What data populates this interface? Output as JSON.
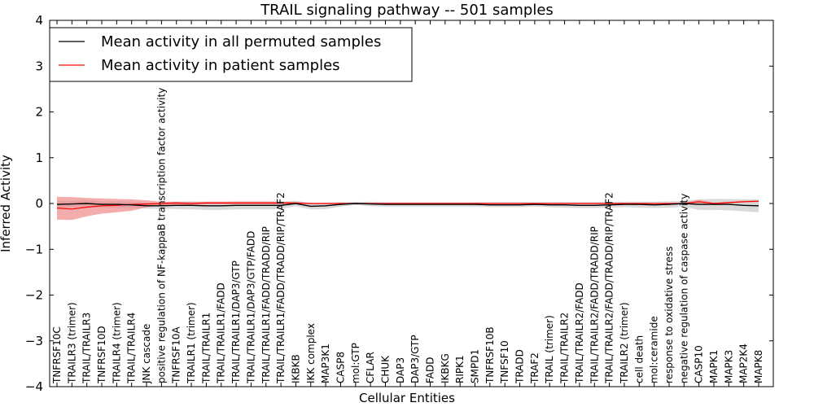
{
  "chart_data": {
    "type": "line",
    "title": "TRAIL signaling pathway -- 501 samples",
    "xlabel": "Cellular Entities",
    "ylabel": "Inferred Activity",
    "ylim": [
      -4,
      4
    ],
    "yticks": [
      "4",
      "3",
      "2",
      "1",
      "0",
      "−1",
      "−2",
      "−3",
      "−4"
    ],
    "ytick_values": [
      4,
      3,
      2,
      1,
      0,
      -1,
      -2,
      -3,
      -4
    ],
    "grid": false,
    "legend_location": "top-left",
    "colors": {
      "permuted": "#000000",
      "patient": "#ff0000",
      "permuted_band": "#bfbfbf",
      "patient_band": "#f08080"
    },
    "categories": [
      "TNFRSF10C",
      "TRAILR3 (trimer)",
      "TRAIL/TRAILR3",
      "TNFRSF10D",
      "TRAILR4 (trimer)",
      "TRAIL/TRAILR4",
      "JNK cascade",
      "positive regulation of NF-kappaB transcription factor activity",
      "TNFRSF10A",
      "TRAILR1 (trimer)",
      "TRAIL/TRAILR1",
      "TRAIL/TRAILR1/FADD",
      "TRAIL/TRAILR1/DAP3/GTP",
      "TRAIL/TRAILR1/DAP3/GTP/FADD",
      "TRAIL/TRAILR1/FADD/TRADD/RIP",
      "TRAIL/TRAILR1/FADD/TRADD/RIP/TRAF2",
      "IKBKB",
      "IKK complex",
      "MAP3K1",
      "CASP8",
      "mol:GTP",
      "CFLAR",
      "CHUK",
      "DAP3",
      "DAP3/GTP",
      "FADD",
      "IKBKG",
      "RIPK1",
      "SMPD1",
      "TNFRSF10B",
      "TNFSF10",
      "TRADD",
      "TRAF2",
      "TRAIL (trimer)",
      "TRAIL/TRAILR2",
      "TRAIL/TRAILR2/FADD",
      "TRAIL/TRAILR2/FADD/TRADD/RIP",
      "TRAIL/TRAILR2/FADD/TRADD/RIP/TRAF2",
      "TRAILR2 (trimer)",
      "cell death",
      "mol:ceramide",
      "response to oxidative stress",
      "negative regulation of caspase activity",
      "CASP10",
      "MAPK1",
      "MAPK3",
      "MAP2K4",
      "MAPK8"
    ],
    "series": [
      {
        "name": "Mean activity in all permuted samples",
        "values": [
          -0.02,
          -0.01,
          0.0,
          -0.02,
          -0.02,
          -0.03,
          -0.05,
          -0.05,
          -0.04,
          -0.04,
          -0.05,
          -0.05,
          -0.04,
          -0.04,
          -0.04,
          -0.04,
          0.0,
          -0.06,
          -0.05,
          -0.02,
          0.0,
          -0.01,
          -0.02,
          -0.02,
          -0.02,
          -0.02,
          -0.02,
          -0.02,
          -0.02,
          -0.03,
          -0.03,
          -0.03,
          -0.02,
          -0.03,
          -0.03,
          -0.04,
          -0.04,
          -0.03,
          -0.02,
          -0.02,
          -0.03,
          -0.02,
          0.0,
          -0.02,
          -0.02,
          -0.02,
          -0.04,
          -0.05
        ],
        "band_low": [
          -0.1,
          -0.08,
          -0.08,
          -0.09,
          -0.09,
          -0.1,
          -0.11,
          -0.12,
          -0.12,
          -0.13,
          -0.14,
          -0.14,
          -0.13,
          -0.13,
          -0.13,
          -0.12,
          -0.06,
          -0.13,
          -0.12,
          -0.07,
          -0.03,
          -0.06,
          -0.07,
          -0.07,
          -0.07,
          -0.07,
          -0.07,
          -0.07,
          -0.07,
          -0.08,
          -0.08,
          -0.08,
          -0.07,
          -0.08,
          -0.09,
          -0.1,
          -0.1,
          -0.09,
          -0.08,
          -0.09,
          -0.1,
          -0.09,
          -0.07,
          -0.14,
          -0.14,
          -0.15,
          -0.17,
          -0.19
        ],
        "band_high": [
          0.06,
          0.06,
          0.07,
          0.05,
          0.05,
          0.04,
          0.02,
          0.02,
          0.04,
          0.05,
          0.04,
          0.04,
          0.05,
          0.05,
          0.05,
          0.04,
          0.06,
          0.01,
          0.02,
          0.03,
          0.03,
          0.04,
          0.03,
          0.03,
          0.03,
          0.03,
          0.03,
          0.03,
          0.03,
          0.03,
          0.03,
          0.03,
          0.03,
          0.03,
          0.03,
          0.03,
          0.03,
          0.03,
          0.04,
          0.04,
          0.04,
          0.05,
          0.06,
          0.09,
          0.1,
          0.1,
          0.09,
          0.09
        ]
      },
      {
        "name": "Mean activity in patient samples",
        "values": [
          -0.1,
          -0.12,
          -0.08,
          -0.05,
          -0.04,
          -0.02,
          -0.01,
          0.0,
          0.01,
          0.0,
          0.01,
          0.01,
          0.01,
          0.01,
          0.01,
          0.01,
          0.01,
          0.0,
          0.0,
          0.0,
          0.0,
          0.0,
          0.0,
          0.0,
          0.0,
          0.0,
          0.0,
          0.0,
          0.0,
          0.0,
          0.0,
          0.0,
          0.0,
          0.0,
          0.0,
          0.0,
          0.0,
          0.0,
          0.0,
          0.0,
          0.0,
          0.0,
          0.0,
          0.04,
          0.0,
          0.02,
          0.04,
          0.05
        ],
        "band_low": [
          -0.35,
          -0.36,
          -0.28,
          -0.22,
          -0.19,
          -0.16,
          -0.08,
          -0.04,
          -0.03,
          -0.03,
          -0.02,
          -0.02,
          -0.02,
          -0.02,
          -0.02,
          -0.02,
          -0.01,
          -0.01,
          -0.01,
          -0.01,
          -0.01,
          -0.01,
          -0.01,
          -0.01,
          -0.01,
          -0.01,
          -0.01,
          -0.01,
          -0.01,
          -0.01,
          -0.01,
          -0.01,
          -0.01,
          -0.01,
          -0.01,
          -0.01,
          -0.01,
          -0.01,
          -0.01,
          -0.01,
          -0.01,
          -0.01,
          -0.01,
          0.0,
          -0.02,
          0.0,
          0.02,
          0.03
        ],
        "band_high": [
          0.15,
          0.14,
          0.12,
          0.11,
          0.1,
          0.09,
          0.07,
          0.04,
          0.04,
          0.03,
          0.04,
          0.04,
          0.04,
          0.04,
          0.04,
          0.04,
          0.03,
          0.01,
          0.01,
          0.01,
          0.01,
          0.01,
          0.01,
          0.01,
          0.01,
          0.01,
          0.01,
          0.01,
          0.01,
          0.01,
          0.01,
          0.01,
          0.01,
          0.01,
          0.01,
          0.01,
          0.01,
          0.01,
          0.01,
          0.01,
          0.01,
          0.01,
          0.01,
          0.08,
          0.02,
          0.04,
          0.06,
          0.07
        ]
      }
    ]
  }
}
